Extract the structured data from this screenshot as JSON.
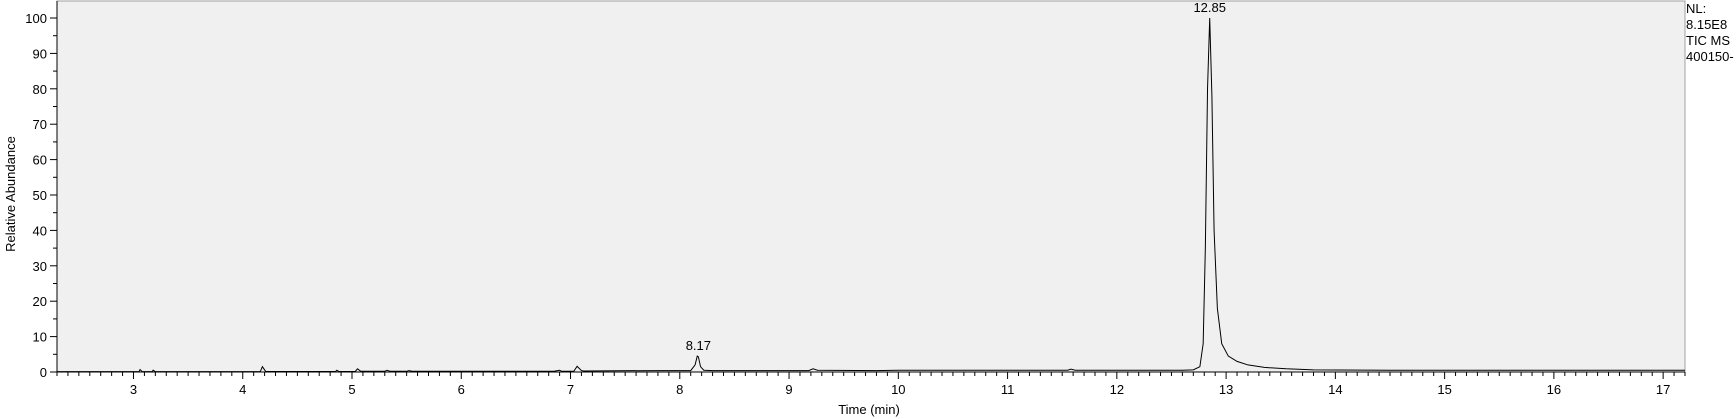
{
  "chart_data": {
    "type": "line",
    "title": "",
    "xlabel": "Time (min)",
    "ylabel": "Relative Abundance",
    "xlim": [
      2.3,
      17.2
    ],
    "ylim": [
      0,
      102
    ],
    "x_ticks": [
      "3",
      "4",
      "5",
      "6",
      "7",
      "8",
      "9",
      "10",
      "11",
      "12",
      "13",
      "14",
      "15",
      "16",
      "17"
    ],
    "y_ticks": [
      "0",
      "10",
      "20",
      "30",
      "40",
      "50",
      "60",
      "70",
      "80",
      "90",
      "100"
    ],
    "peak_labels": [
      {
        "x": 8.17,
        "y": 4.5,
        "label": "8.17"
      },
      {
        "x": 12.85,
        "y": 100,
        "label": "12.85"
      }
    ],
    "series": [
      {
        "x": [
          2.3,
          3.05,
          3.06,
          3.08,
          3.17,
          3.18,
          3.2,
          4.16,
          4.18,
          4.21,
          4.85,
          4.86,
          4.88,
          5.03,
          5.05,
          5.08,
          5.3,
          5.32,
          5.35,
          5.5,
          5.52,
          5.55,
          6.85,
          6.9,
          6.92,
          7.03,
          7.06,
          7.1,
          7.12,
          7.8,
          8.1,
          8.14,
          8.16,
          8.17,
          8.19,
          8.22,
          8.3,
          9.18,
          9.22,
          9.26,
          9.8,
          10.0,
          10.4,
          11.55,
          11.58,
          11.62,
          12.6,
          12.7,
          12.76,
          12.79,
          12.81,
          12.83,
          12.85,
          12.87,
          12.89,
          12.92,
          12.96,
          13.02,
          13.1,
          13.2,
          13.35,
          13.55,
          13.8,
          14.5,
          15.5,
          16.5,
          17.2
        ],
        "y": [
          0.1,
          0.1,
          0.7,
          0.1,
          0.1,
          0.5,
          0.1,
          0.1,
          1.5,
          0.15,
          0.15,
          0.5,
          0.15,
          0.15,
          0.9,
          0.2,
          0.2,
          0.5,
          0.2,
          0.2,
          0.4,
          0.2,
          0.2,
          0.5,
          0.2,
          0.2,
          1.6,
          0.4,
          0.3,
          0.4,
          0.4,
          2.0,
          4.5,
          4.3,
          1.5,
          0.5,
          0.4,
          0.4,
          0.9,
          0.5,
          0.4,
          0.5,
          0.5,
          0.5,
          0.8,
          0.5,
          0.5,
          0.6,
          1.5,
          8,
          35,
          80,
          100,
          78,
          40,
          18,
          8,
          4.5,
          3,
          2,
          1.3,
          0.9,
          0.6,
          0.5,
          0.5,
          0.5,
          0.5
        ]
      }
    ]
  },
  "info_panel": {
    "line1": "NL:",
    "line2": "8.15E8",
    "line3": "TIC  MS",
    "line4": "400150-"
  },
  "colors": {
    "plot_bg": "#f0f0f0",
    "trace": "#000000",
    "axis": "#000000"
  }
}
